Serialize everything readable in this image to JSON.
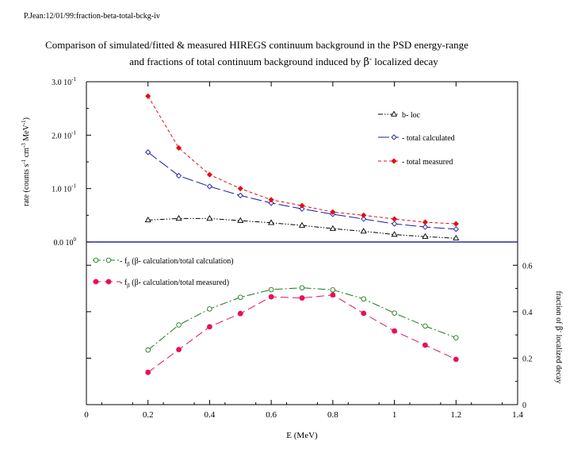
{
  "header": {
    "stamp": "P.Jean:12/01/99:fraction-beta-total-bckg-iv"
  },
  "title": {
    "line1": "Comparison of simulated/fitted & measured HIREGS continuum background in the PSD energy-range",
    "line2_prefix": "and fractions of total continuum background induced by ",
    "line2_beta": "β",
    "line2_sup": "-",
    "line2_suffix": " localized decay"
  },
  "colors": {
    "loc": "#000000",
    "calc": "#1a1aa8",
    "meas": "#e01010",
    "frac_calc": "#1a7a1a",
    "frac_meas": "#e8105a",
    "axis": "#000000",
    "separator": "#00008b"
  },
  "chart_data": [
    {
      "type": "line",
      "title": "",
      "xlabel": "",
      "ylabel": "rate (counts s-1 cm-3 MeV-1)",
      "ylabel_parts": {
        "a": "rate (counts s",
        "s1": "-1",
        "b": " cm",
        "s2": "-3",
        "c": " MeV",
        "s3": "-1",
        "d": ")"
      },
      "ylim": [
        0,
        0.3
      ],
      "yticks": [
        {
          "v": 0.0,
          "base": "0.0 10",
          "exp": "0"
        },
        {
          "v": 0.1,
          "base": "1.0 10",
          "exp": "-1"
        },
        {
          "v": 0.2,
          "base": "2.0 10",
          "exp": "-1"
        },
        {
          "v": 0.3,
          "base": "3.0 10",
          "exp": "-1"
        }
      ],
      "x": [
        0.2,
        0.3,
        0.4,
        0.5,
        0.6,
        0.7,
        0.8,
        0.9,
        1.0,
        1.1,
        1.2
      ],
      "legend_position": "top-right",
      "series": [
        {
          "name": "b- loc",
          "color_key": "loc",
          "marker": "triangle-open",
          "dash": "6,2,1.5,2,1.5,2",
          "values": [
            0.041,
            0.044,
            0.044,
            0.04,
            0.036,
            0.031,
            0.025,
            0.02,
            0.014,
            0.01,
            0.007
          ]
        },
        {
          "name": " - total calculated",
          "color_key": "calc",
          "marker": "diamond-open",
          "dash": "14,4",
          "values": [
            0.168,
            0.124,
            0.104,
            0.087,
            0.073,
            0.062,
            0.052,
            0.043,
            0.034,
            0.028,
            0.024
          ]
        },
        {
          "name": "- total measured",
          "color_key": "meas",
          "marker": "diamond-filled",
          "dash": "4,3",
          "values": [
            0.273,
            0.176,
            0.126,
            0.1,
            0.079,
            0.068,
            0.056,
            0.05,
            0.043,
            0.037,
            0.034
          ]
        }
      ]
    },
    {
      "type": "line",
      "title": "",
      "xlabel": "E (MeV)",
      "ylabel": "fraction of β- localized decay",
      "ylabel_parts": {
        "a": "fraction of ",
        "beta": "β",
        "sup": "-",
        "b": " localized decay"
      },
      "xlim": [
        0,
        1.4
      ],
      "xticks": [
        "0",
        "0.2",
        "0.4",
        "0.6",
        "0.8",
        "1",
        "1.2",
        "1.4"
      ],
      "ylim": [
        0,
        0.7
      ],
      "yticks": [
        "0",
        "0.2",
        "0.4",
        "0.6"
      ],
      "x": [
        0.2,
        0.3,
        0.4,
        0.5,
        0.6,
        0.7,
        0.8,
        0.9,
        1.0,
        1.1,
        1.2
      ],
      "legend_position": "top-left",
      "series": [
        {
          "name": "fβ (β- calculation/total calculation)",
          "label_prefix": " - f",
          "label_sub": "β",
          "label_rest": " (β- calculation/total calculation)",
          "color_key": "frac_calc",
          "marker": "circle-open",
          "dash": "10,3,2,3",
          "values": [
            0.235,
            0.343,
            0.412,
            0.462,
            0.495,
            0.503,
            0.494,
            0.455,
            0.394,
            0.338,
            0.288
          ]
        },
        {
          "name": "fβ (β- calculation/total measured)",
          "label_prefix": " - f",
          "label_sub": "β",
          "label_rest": " (β- calculation/total measured)",
          "color_key": "frac_meas",
          "marker": "circle-filled",
          "dash": "10,5",
          "values": [
            0.139,
            0.237,
            0.335,
            0.392,
            0.464,
            0.459,
            0.472,
            0.393,
            0.317,
            0.256,
            0.195
          ]
        }
      ]
    }
  ]
}
